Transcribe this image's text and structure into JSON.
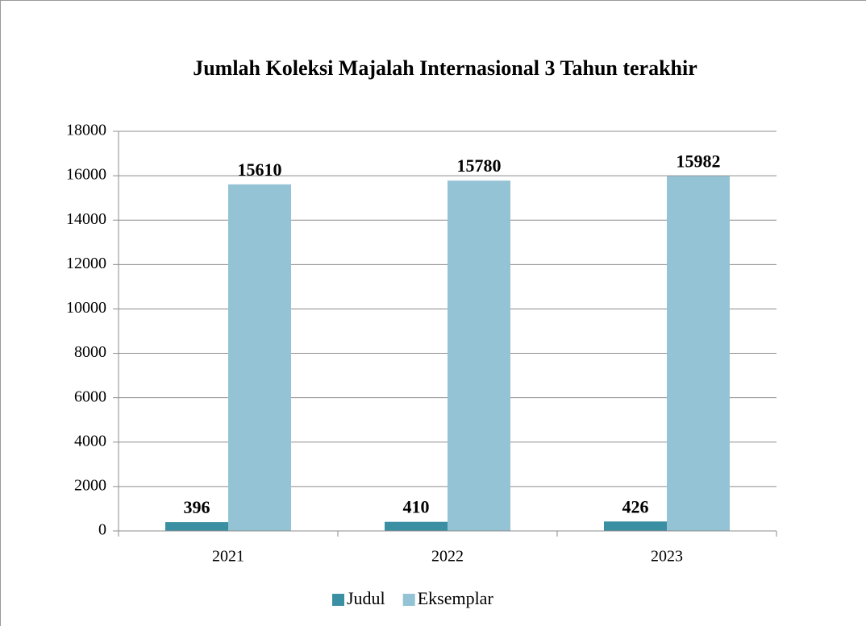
{
  "chart_data": {
    "type": "bar",
    "title": "Jumlah Koleksi Majalah Internasional 3 Tahun terakhir",
    "categories": [
      "2021",
      "2022",
      "2023"
    ],
    "series": [
      {
        "name": "Judul",
        "color": "#3b8fa3",
        "values": [
          396,
          410,
          426
        ]
      },
      {
        "name": "Eksemplar",
        "color": "#93c3d4",
        "values": [
          15610,
          15780,
          15982
        ]
      }
    ],
    "ylim": [
      0,
      18000
    ],
    "yticks": [
      0,
      2000,
      4000,
      6000,
      8000,
      10000,
      12000,
      14000,
      16000,
      18000
    ],
    "grid": true,
    "legend": "bottom"
  }
}
